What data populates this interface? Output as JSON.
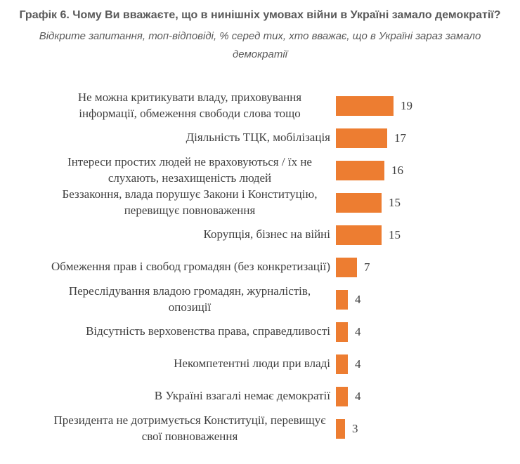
{
  "chart_data": {
    "type": "bar",
    "orientation": "horizontal",
    "title": "Графік 6. Чому Ви вважаєте, що в нинішніх умовах війни в Україні замало демократії?",
    "subtitle": "Відкрите запитання, топ-відповіді, % серед тих, хто вважає, що в Україні зараз замало демократії",
    "unit": "%",
    "bar_color": "#ED7D31",
    "categories": [
      "Не можна критикувати владу, приховування інформації, обмеження свободи слова тощо",
      "Діяльність ТЦК, мобілізація",
      "Інтереси простих людей не враховуються / їх не слухають, незахищеність людей",
      "Беззаконня, влада порушує Закони і Конституцію, перевищує повноваження",
      "Корупція, бізнес на війні",
      "Обмеження прав і свобод громадян (без конкретизації)",
      "Переслідування владою громадян, журналістів, опозиції",
      "Відсутність верховенства права, справедливості",
      "Некомпетентні люди при владі",
      "В Україні взагалі немає демократії",
      "Президента не дотримується Конституції, перевищує свої повноваження"
    ],
    "values": [
      19,
      17,
      16,
      15,
      15,
      7,
      4,
      4,
      4,
      4,
      3
    ],
    "xlim": [
      0,
      20
    ],
    "data_labels": true,
    "axes_hidden": true,
    "gridlines": false,
    "legend": "none"
  }
}
